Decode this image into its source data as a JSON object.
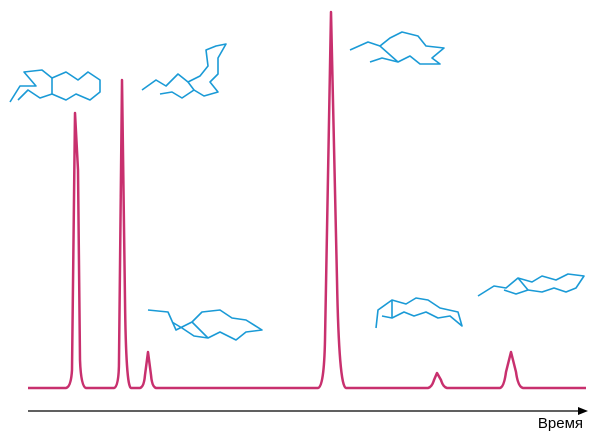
{
  "axis_label": "Время"
}
